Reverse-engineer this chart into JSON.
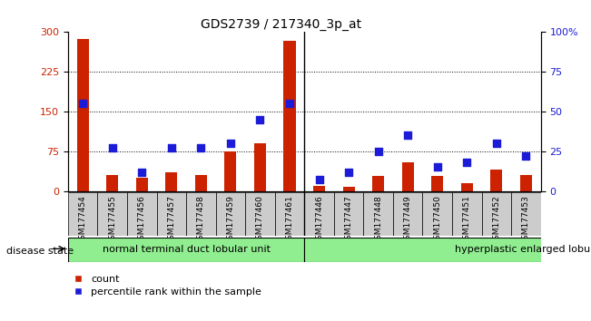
{
  "title": "GDS2739 / 217340_3p_at",
  "samples": [
    "GSM177454",
    "GSM177455",
    "GSM177456",
    "GSM177457",
    "GSM177458",
    "GSM177459",
    "GSM177460",
    "GSM177461",
    "GSM177446",
    "GSM177447",
    "GSM177448",
    "GSM177449",
    "GSM177450",
    "GSM177451",
    "GSM177452",
    "GSM177453"
  ],
  "counts": [
    287,
    30,
    25,
    35,
    30,
    75,
    90,
    283,
    10,
    8,
    28,
    55,
    28,
    15,
    40,
    30
  ],
  "percentiles": [
    55,
    27,
    12,
    27,
    27,
    30,
    45,
    55,
    7,
    12,
    25,
    35,
    15,
    18,
    30,
    22
  ],
  "group1_label": "normal terminal duct lobular unit",
  "group2_label": "hyperplastic enlarged lobular unit",
  "group1_count": 8,
  "group2_count": 8,
  "bar_color": "#cc2200",
  "dot_color": "#1c1cd8",
  "left_axis_color": "#cc2200",
  "right_axis_color": "#1c1cd8",
  "ylim_left": [
    0,
    300
  ],
  "ylim_right": [
    0,
    100
  ],
  "yticks_left": [
    0,
    75,
    150,
    225,
    300
  ],
  "yticks_right": [
    0,
    25,
    50,
    75,
    100
  ],
  "ytick_labels_right": [
    "0",
    "25",
    "50",
    "75",
    "100%"
  ],
  "grid_levels": [
    75,
    150,
    225
  ],
  "group_color": "#90ee90",
  "label_count": "count",
  "label_percentile": "percentile rank within the sample",
  "disease_state_label": "disease state",
  "bar_width": 0.4,
  "dot_size": 28
}
